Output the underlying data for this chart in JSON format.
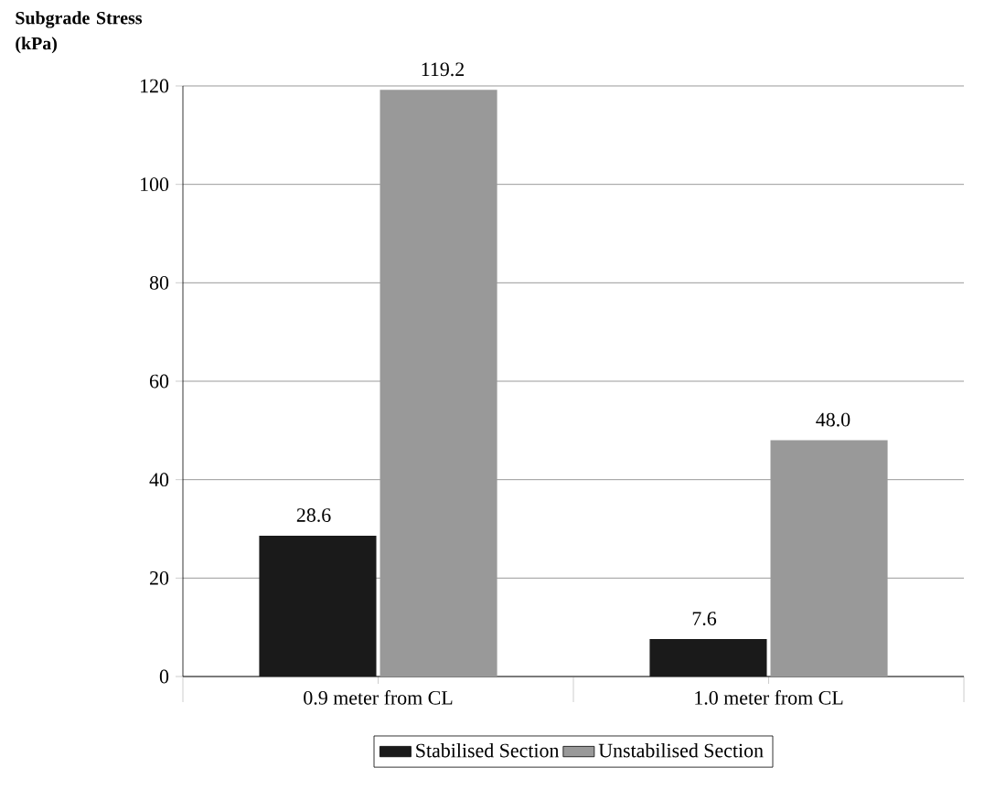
{
  "chart_data": {
    "type": "bar",
    "ylabel": "Subgrade Stress (kPa)",
    "categories": [
      "0.9 meter from CL",
      "1.0 meter from CL"
    ],
    "series": [
      {
        "name": "Stabilised Section",
        "color": "#1a1a1a",
        "values": [
          28.6,
          7.6
        ],
        "value_labels": [
          "28.6",
          "7.6"
        ]
      },
      {
        "name": "Unstabilised Section",
        "color": "#999999",
        "values": [
          119.2,
          48.0
        ],
        "value_labels": [
          "119.2",
          "48.0"
        ]
      }
    ],
    "ylim": [
      0,
      120
    ],
    "yticks": [
      0,
      20,
      40,
      60,
      80,
      100,
      120
    ],
    "grid": "y",
    "legend": "bottom"
  }
}
